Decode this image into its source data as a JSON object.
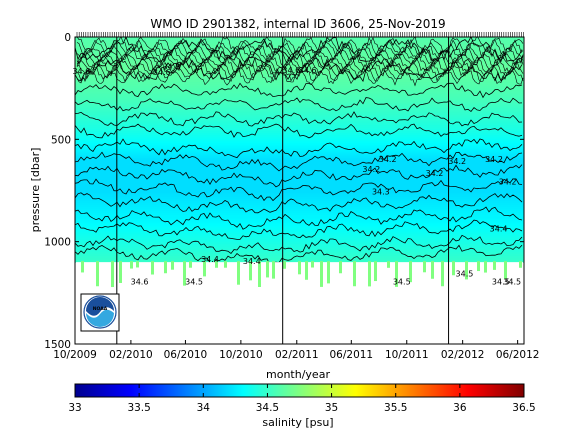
{
  "chart_data": {
    "type": "heatmap",
    "title": "WMO ID 2901382, internal ID 3606, 25-Nov-2019",
    "xlabel": "month/year",
    "ylabel": "pressure [dbar]",
    "colorbar_label": "salinity [psu]",
    "x_ticks": [
      "10/2009",
      "02/2010",
      "06/2010",
      "10/2010",
      "02/2011",
      "06/2011",
      "10/2011",
      "02/2012",
      "06/2012"
    ],
    "y_ticks": [
      "0",
      "500",
      "1000",
      "1500"
    ],
    "colorbar_ticks": [
      "33",
      "33.5",
      "34",
      "34.5",
      "35",
      "35.5",
      "36",
      "36.5"
    ],
    "ylim": [
      0,
      1500
    ],
    "colorbar_range": [
      33,
      36.5
    ],
    "year_boundaries": [
      "01/2010",
      "01/2011",
      "01/2012"
    ],
    "approx_salinity_profile": [
      {
        "pressure": 0,
        "salinity": 34.6
      },
      {
        "pressure": 150,
        "salinity": 34.65
      },
      {
        "pressure": 300,
        "salinity": 34.55
      },
      {
        "pressure": 450,
        "salinity": 34.4
      },
      {
        "pressure": 600,
        "salinity": 34.2
      },
      {
        "pressure": 750,
        "salinity": 34.2
      },
      {
        "pressure": 900,
        "salinity": 34.3
      },
      {
        "pressure": 1050,
        "salinity": 34.45
      },
      {
        "pressure": 1100,
        "salinity": 34.5
      }
    ],
    "contour_labels": [
      {
        "text": "34.6",
        "date": "2009-10-15",
        "pressure": 180
      },
      {
        "text": "34.6",
        "date": "2010-04-10",
        "pressure": 185
      },
      {
        "text": "34.8",
        "date": "2010-05-01",
        "pressure": 160
      },
      {
        "text": "34.6",
        "date": "2011-01-20",
        "pressure": 175
      },
      {
        "text": "34.6",
        "date": "2011-02-25",
        "pressure": 175
      },
      {
        "text": "34.2",
        "date": "2011-08-20",
        "pressure": 610
      },
      {
        "text": "34.2",
        "date": "2011-07-15",
        "pressure": 660
      },
      {
        "text": "34.2",
        "date": "2011-12-01",
        "pressure": 680
      },
      {
        "text": "34.3",
        "date": "2011-08-05",
        "pressure": 770
      },
      {
        "text": "34.2",
        "date": "2012-01-20",
        "pressure": 620
      },
      {
        "text": "34.2",
        "date": "2012-04-10",
        "pressure": 610
      },
      {
        "text": "34.2",
        "date": "2012-05-10",
        "pressure": 720
      },
      {
        "text": "34.4",
        "date": "2012-04-20",
        "pressure": 950
      },
      {
        "text": "34.4",
        "date": "2010-07-25",
        "pressure": 1100
      },
      {
        "text": "34.4",
        "date": "2010-10-25",
        "pressure": 1110
      },
      {
        "text": "34.6",
        "date": "2010-02-20",
        "pressure": 1210
      },
      {
        "text": "34.5",
        "date": "2010-06-20",
        "pressure": 1210
      },
      {
        "text": "34.5",
        "date": "2011-09-20",
        "pressure": 1210
      },
      {
        "text": "34.5",
        "date": "2012-02-05",
        "pressure": 1170
      },
      {
        "text": "34.5",
        "date": "2012-04-25",
        "pressure": 1210
      },
      {
        "text": "34.5",
        "date": "2012-05-20",
        "pressure": 1210
      }
    ],
    "colors": {
      "colormap": [
        "#00008f",
        "#0000ff",
        "#0080ff",
        "#00ffff",
        "#80ff80",
        "#ffff00",
        "#ff8000",
        "#ff0000",
        "#800000"
      ],
      "contour": "#000000",
      "background": "#ffffff"
    },
    "logo": "NOAA"
  }
}
